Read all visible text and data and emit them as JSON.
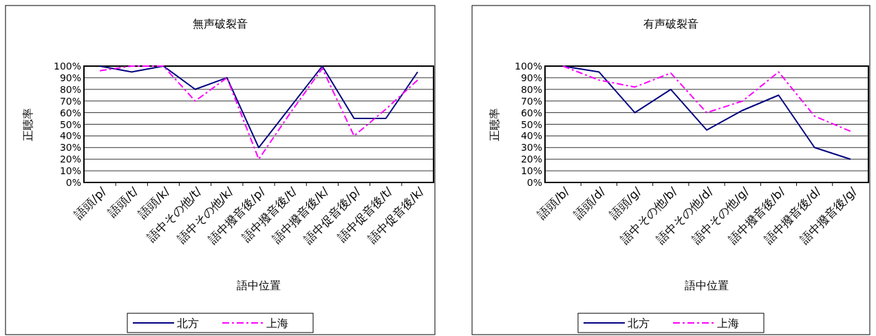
{
  "chart_data": [
    {
      "type": "line",
      "title": "無声破裂音",
      "xlabel": "語中位置",
      "ylabel": "正聴率",
      "categories": [
        "語頭/p/",
        "語頭/t/",
        "語頭/k/",
        "語中その他/t/",
        "語中その他/k/",
        "語中撥音後/p/",
        "語中撥音後/t/",
        "語中撥音後/k/",
        "語中促音後/p/",
        "語中促音後/t/",
        "語中促音後/k/"
      ],
      "series": [
        {
          "name": "北方",
          "color": "#000080",
          "line_style": "solid",
          "values": [
            100,
            95,
            100,
            80,
            90,
            30,
            65,
            100,
            55,
            55,
            95
          ]
        },
        {
          "name": "上海",
          "color": "#ff00ff",
          "line_style": "dashed",
          "values": [
            96,
            100,
            100,
            70,
            90,
            20,
            60,
            98,
            40,
            63,
            88
          ]
        }
      ],
      "ylim": [
        0,
        100
      ],
      "yticks": [
        {
          "value": 0,
          "label": "0%"
        },
        {
          "value": 10,
          "label": "10%"
        },
        {
          "value": 20,
          "label": "20%"
        },
        {
          "value": 30,
          "label": "30%"
        },
        {
          "value": 40,
          "label": "40%"
        },
        {
          "value": 50,
          "label": "50%"
        },
        {
          "value": 60,
          "label": "60%"
        },
        {
          "value": 70,
          "label": "70%"
        },
        {
          "value": 80,
          "label": "80%"
        },
        {
          "value": 90,
          "label": "90%"
        },
        {
          "value": 100,
          "label": "100%"
        }
      ],
      "grid": "y",
      "legend": "bottom",
      "marker": "none"
    },
    {
      "type": "line",
      "title": "有声破裂音",
      "xlabel": "語中位置",
      "ylabel": "正聴率",
      "categories": [
        "語頭/b/",
        "語頭/d/",
        "語頭/g/",
        "語中その他/b/",
        "語中その他/d/",
        "語中その他/g/",
        "語中撥音後/b/",
        "語中撥音後/d/",
        "語中撥音後/g/"
      ],
      "series": [
        {
          "name": "北方",
          "color": "#000080",
          "line_style": "solid",
          "values": [
            100,
            95,
            60,
            80,
            45,
            62,
            75,
            30,
            20
          ]
        },
        {
          "name": "上海",
          "color": "#ff00ff",
          "line_style": "dashed",
          "values": [
            100,
            88,
            82,
            94,
            60,
            70,
            95,
            57,
            44
          ]
        }
      ],
      "ylim": [
        0,
        100
      ],
      "yticks": [
        {
          "value": 0,
          "label": "0%"
        },
        {
          "value": 10,
          "label": "10%"
        },
        {
          "value": 20,
          "label": "20%"
        },
        {
          "value": 30,
          "label": "30%"
        },
        {
          "value": 40,
          "label": "40%"
        },
        {
          "value": 50,
          "label": "50%"
        },
        {
          "value": 60,
          "label": "60%"
        },
        {
          "value": 70,
          "label": "70%"
        },
        {
          "value": 80,
          "label": "80%"
        },
        {
          "value": 90,
          "label": "90%"
        },
        {
          "value": 100,
          "label": "100%"
        }
      ],
      "grid": "y",
      "legend": "bottom",
      "marker": "none"
    }
  ]
}
